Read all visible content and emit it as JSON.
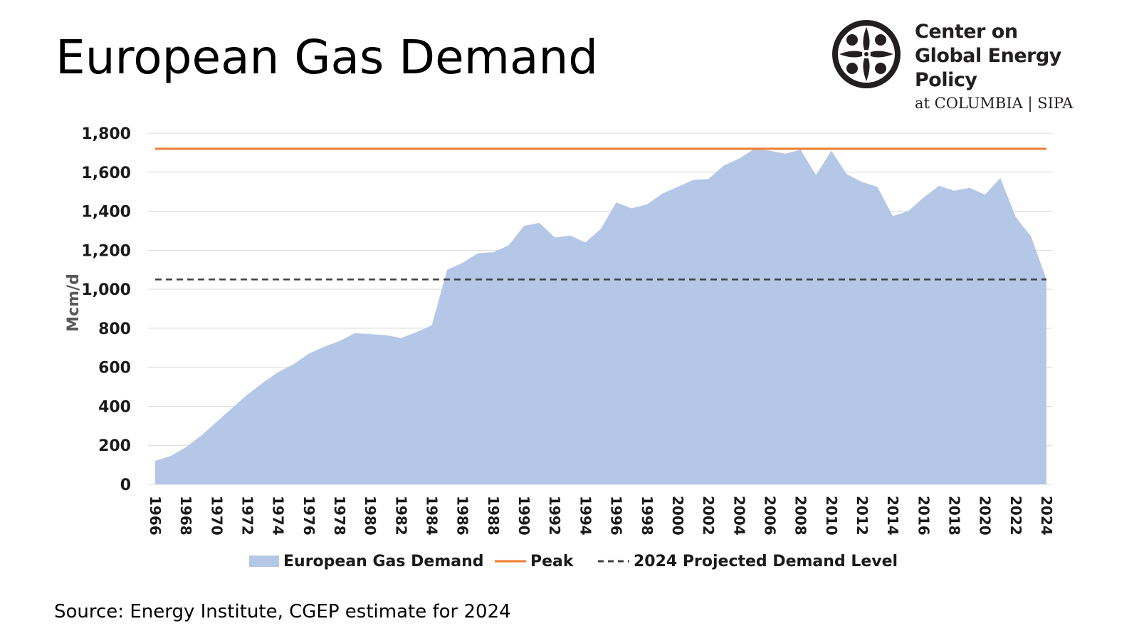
{
  "page": {
    "title": "European Gas Demand",
    "source": "Source: Energy Institute, CGEP estimate for 2024"
  },
  "logo": {
    "line1": "Center on",
    "line2": "Global Energy Policy",
    "line3": "at COLUMBIA | SIPA"
  },
  "colors": {
    "area": "#b4c7e7",
    "peak": "#ed7d31",
    "projected": "#404040",
    "grid": "#d9d9d9",
    "axis_text": "#1a1a1a",
    "ylabel": "#595959"
  },
  "legend": {
    "area_label": "European Gas Demand",
    "peak_label": "Peak",
    "projected_label": "2024 Projected Demand Level"
  },
  "chart_data": {
    "type": "area",
    "title": "",
    "xlabel": "",
    "ylabel": "Mcm/d",
    "ylim": [
      0,
      1800
    ],
    "yticks": [
      0,
      200,
      400,
      600,
      800,
      1000,
      1200,
      1400,
      1600,
      1800
    ],
    "ytick_labels": [
      "0",
      "200",
      "400",
      "600",
      "800",
      "1,000",
      "1,200",
      "1,400",
      "1,600",
      "1,800"
    ],
    "grid": true,
    "legend_position": "bottom",
    "x": [
      1966,
      1967,
      1968,
      1969,
      1970,
      1971,
      1972,
      1973,
      1974,
      1975,
      1976,
      1977,
      1978,
      1979,
      1980,
      1981,
      1982,
      1983,
      1984,
      1985,
      1986,
      1987,
      1988,
      1989,
      1990,
      1991,
      1992,
      1993,
      1994,
      1995,
      1996,
      1997,
      1998,
      1999,
      2000,
      2001,
      2002,
      2003,
      2004,
      2005,
      2006,
      2007,
      2008,
      2009,
      2010,
      2011,
      2012,
      2013,
      2014,
      2015,
      2016,
      2017,
      2018,
      2019,
      2020,
      2021,
      2022,
      2023,
      2024
    ],
    "xtick_labels": [
      "1966",
      "1968",
      "1970",
      "1972",
      "1974",
      "1976",
      "1978",
      "1980",
      "1982",
      "1984",
      "1986",
      "1988",
      "1990",
      "1992",
      "1994",
      "1996",
      "1998",
      "2000",
      "2002",
      "2004",
      "2006",
      "2008",
      "2010",
      "2012",
      "2014",
      "2016",
      "2018",
      "2020",
      "2022",
      "2024"
    ],
    "series": [
      {
        "name": "European Gas Demand",
        "type": "area",
        "values": [
          120,
          145,
          190,
          250,
          320,
          390,
          460,
          520,
          575,
          615,
          670,
          705,
          735,
          775,
          770,
          765,
          750,
          780,
          815,
          1100,
          1135,
          1185,
          1190,
          1225,
          1325,
          1340,
          1265,
          1275,
          1240,
          1310,
          1445,
          1415,
          1435,
          1490,
          1525,
          1560,
          1565,
          1635,
          1670,
          1720,
          1710,
          1695,
          1715,
          1585,
          1710,
          1590,
          1550,
          1525,
          1375,
          1400,
          1470,
          1530,
          1505,
          1520,
          1485,
          1570,
          1370,
          1270,
          1050
        ]
      },
      {
        "name": "Peak",
        "type": "line",
        "value": 1720
      },
      {
        "name": "2024 Projected Demand Level",
        "type": "line",
        "style": "dashed",
        "value": 1050
      }
    ]
  }
}
